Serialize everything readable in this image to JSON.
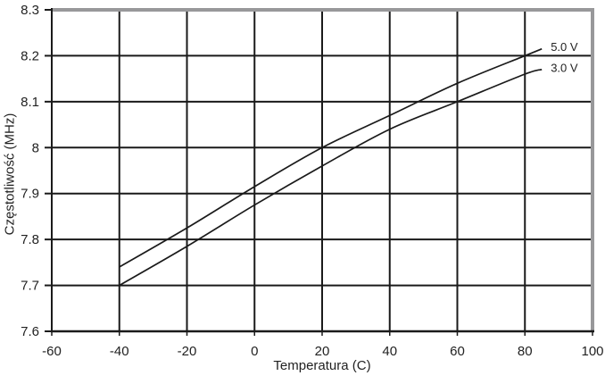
{
  "chart_data": {
    "type": "line",
    "title": "",
    "xlabel": "Temperatura (C)",
    "ylabel": "Częstotliwość (MHz)",
    "xlim": [
      -60,
      100
    ],
    "ylim": [
      7.6,
      8.3
    ],
    "x_ticks": [
      -60,
      -40,
      -20,
      0,
      20,
      40,
      60,
      80,
      100
    ],
    "x_tick_labels": [
      "-60",
      "-40",
      "-20",
      "0",
      "20",
      "40",
      "60",
      "80",
      "100"
    ],
    "y_ticks": [
      7.6,
      7.7,
      7.8,
      7.9,
      8.0,
      8.1,
      8.2,
      8.3
    ],
    "y_tick_labels": [
      "7.6",
      "7.7",
      "7.8",
      "7.9",
      "8",
      "8.1",
      "8.2",
      "8.3"
    ],
    "grid": true,
    "legend_position": "line-end-labels",
    "series": [
      {
        "name": "5.0 V",
        "x": [
          -40,
          -20,
          0,
          20,
          40,
          60,
          80,
          85
        ],
        "values": [
          7.74,
          7.825,
          7.915,
          8.0,
          8.07,
          8.14,
          8.2,
          8.215
        ]
      },
      {
        "name": "3.0 V",
        "x": [
          -40,
          -20,
          0,
          20,
          40,
          60,
          80,
          85
        ],
        "values": [
          7.7,
          7.785,
          7.875,
          7.96,
          8.04,
          8.1,
          8.16,
          8.17
        ]
      }
    ],
    "colors": {
      "line": "#1a1a1a",
      "grid": "#1a1a1a",
      "plot_border": "#98989a",
      "text": "#222222",
      "background": "#ffffff"
    }
  }
}
